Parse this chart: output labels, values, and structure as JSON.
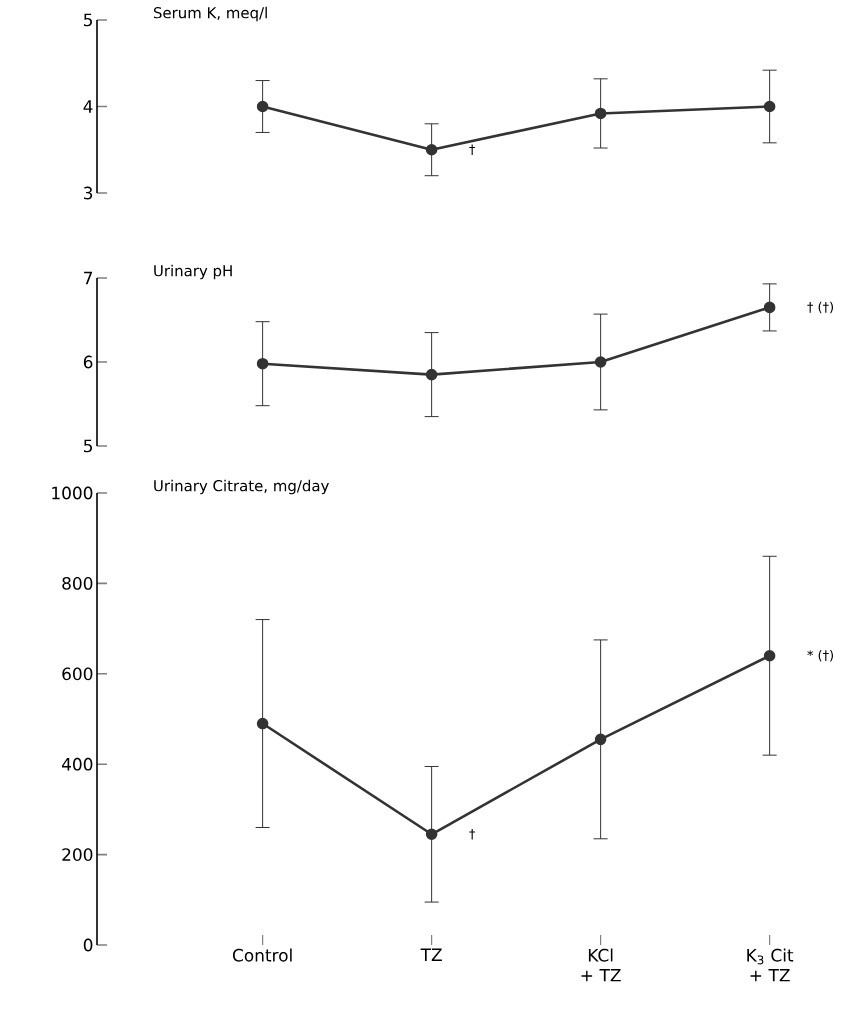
{
  "chart_data": [
    {
      "type": "line",
      "title": "Serum K, meq/l",
      "categories": [
        "Control",
        "TZ",
        "KCl + TZ",
        "K$_{3}$ Cit + TZ"
      ],
      "ylim": [
        3,
        5
      ],
      "yticks": [
        3,
        4,
        5
      ],
      "tick_labels": "y",
      "marker": "circle",
      "line_style": "solid",
      "series": [
        {
          "color": "#333333",
          "values": [
            4.0,
            3.5,
            3.92,
            4.0
          ],
          "errors": [
            0.3,
            0.3,
            0.4,
            0.42
          ]
        }
      ],
      "annotations": [
        {
          "text": "†",
          "x": "TZ",
          "y": 3.5
        }
      ]
    },
    {
      "type": "line",
      "title": "Urinary pH",
      "categories": [
        "Control",
        "TZ",
        "KCl + TZ",
        "K$_{3}$ Cit + TZ"
      ],
      "ylim": [
        5,
        7
      ],
      "yticks": [
        5,
        6,
        7
      ],
      "tick_labels": "y",
      "marker": "circle",
      "line_style": "solid",
      "series": [
        {
          "color": "#333333",
          "values": [
            5.98,
            5.85,
            6.0,
            6.65
          ],
          "errors": [
            0.5,
            0.5,
            0.57,
            0.28
          ]
        }
      ],
      "annotations": [
        {
          "text": "† (†)",
          "x": "K$_{3}$ Cit + TZ",
          "y": 6.65
        }
      ]
    },
    {
      "type": "line",
      "title": "Urinary Citrate, mg/day",
      "categories": [
        "Control",
        "TZ",
        "KCl + TZ",
        "K$_{3}$ Cit + TZ"
      ],
      "ylim": [
        0,
        1000
      ],
      "yticks": [
        0,
        200,
        400,
        600,
        800,
        1000
      ],
      "marker": "circle",
      "line_style": "solid",
      "series": [
        {
          "color": "#333333",
          "values": [
            490,
            245,
            455,
            640
          ],
          "errors": [
            230,
            150,
            220,
            220
          ]
        }
      ],
      "annotations": [
        {
          "text": "†",
          "x": "TZ",
          "y": 245
        },
        {
          "text": "* (†)",
          "x": "K$_{3}$ Cit + TZ",
          "y": 640
        }
      ]
    }
  ]
}
